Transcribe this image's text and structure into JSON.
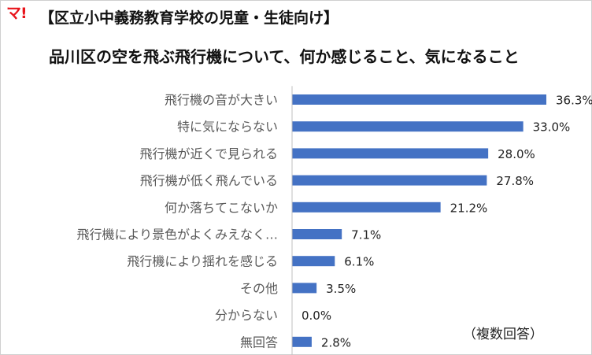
{
  "logo_text": "マ!",
  "title_line1": "【区立小中義務教育学校の児童・生徒向け】",
  "title_line2": "品川区の空を飛ぶ飛行機について、何か感じること、気になること",
  "note": "（複数回答）",
  "colors": {
    "bar": "#4472c4",
    "axis": "#bfbfbf"
  },
  "chart_data": {
    "type": "bar",
    "orientation": "horizontal",
    "title": "",
    "xlabel": "",
    "ylabel": "",
    "xlim": [
      0,
      36.3
    ],
    "grid": false,
    "categories": [
      "飛行機の音が大きい",
      "特に気にならない",
      "飛行機が近くで見られる",
      "飛行機が低く飛んでいる",
      "何か落ちてこないか",
      "飛行機により景色がよくみえなく…",
      "飛行機により揺れを感じる",
      "その他",
      "分からない",
      "無回答"
    ],
    "values": [
      36.3,
      33.0,
      28.0,
      27.8,
      21.2,
      7.1,
      6.1,
      3.5,
      0.0,
      2.8
    ],
    "value_labels": [
      "36.3%",
      "33.0%",
      "28.0%",
      "27.8%",
      "21.2%",
      "7.1%",
      "6.1%",
      "3.5%",
      "0.0%",
      "2.8%"
    ]
  }
}
